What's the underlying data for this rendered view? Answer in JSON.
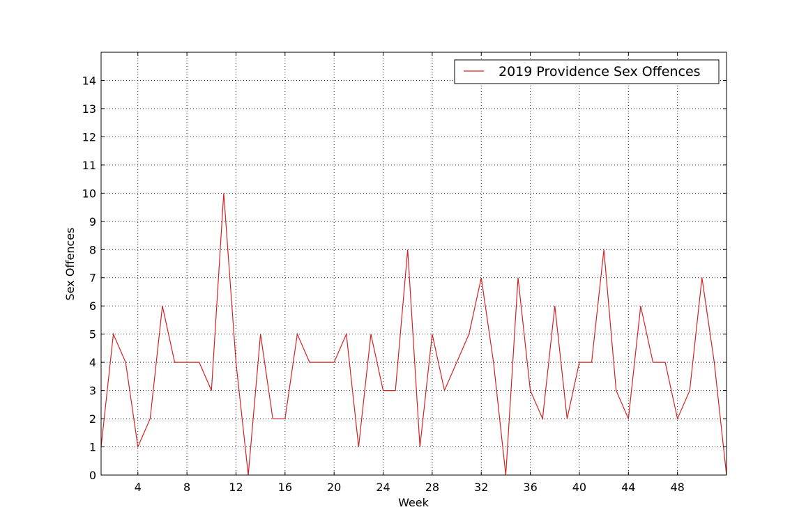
{
  "chart_data": {
    "type": "line",
    "title": "",
    "xlabel": "Week",
    "ylabel": "Sex Offences",
    "xlim": [
      1,
      52
    ],
    "ylim": [
      0,
      15
    ],
    "x_ticks": [
      4,
      8,
      12,
      16,
      20,
      24,
      28,
      32,
      36,
      40,
      44,
      48
    ],
    "y_ticks": [
      0,
      1,
      2,
      3,
      4,
      5,
      6,
      7,
      8,
      9,
      10,
      11,
      12,
      13,
      14
    ],
    "grid": true,
    "legend_position": "top-right",
    "series": [
      {
        "name": "2019 Providence Sex Offences",
        "color": "#d62020",
        "x": [
          1,
          2,
          3,
          4,
          5,
          6,
          7,
          8,
          9,
          10,
          11,
          12,
          13,
          14,
          15,
          16,
          17,
          18,
          19,
          20,
          21,
          22,
          23,
          24,
          25,
          26,
          27,
          28,
          29,
          30,
          31,
          32,
          33,
          34,
          35,
          36,
          37,
          38,
          39,
          40,
          41,
          42,
          43,
          44,
          45,
          46,
          47,
          48,
          49,
          50,
          51,
          52
        ],
        "values": [
          1,
          5,
          4,
          1,
          2,
          6,
          4,
          4,
          4,
          3,
          10,
          4,
          0,
          5,
          2,
          2,
          5,
          4,
          4,
          4,
          5,
          1,
          5,
          3,
          3,
          8,
          1,
          5,
          3,
          4,
          5,
          7,
          4,
          0,
          7,
          3,
          2,
          6,
          2,
          4,
          4,
          8,
          3,
          2,
          6,
          4,
          4,
          2,
          3,
          7,
          4,
          0
        ]
      }
    ]
  }
}
